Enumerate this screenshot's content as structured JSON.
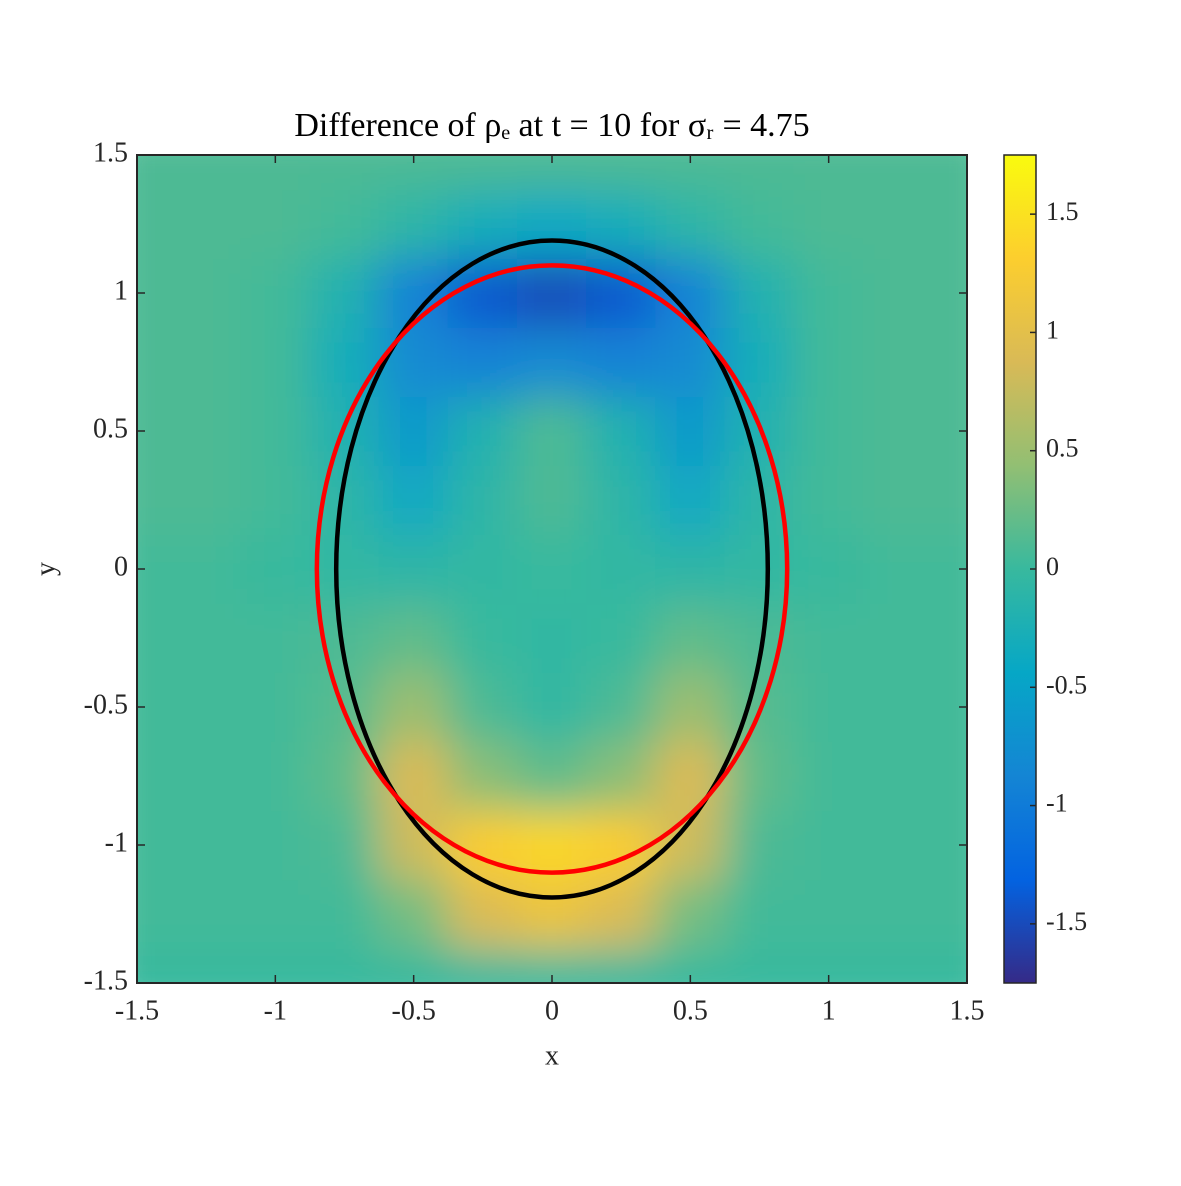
{
  "chart_data": {
    "type": "heatmap",
    "title": "Difference of ρₑ at t = 10 for σᵣ = 4.75",
    "x_label": "x",
    "y_label": "y",
    "x": [
      -1.5,
      -1.25,
      -1,
      -0.75,
      -0.5,
      -0.25,
      0,
      0.25,
      0.5,
      0.75,
      1,
      1.25,
      1.5
    ],
    "y": [
      -1.5,
      -1.25,
      -1,
      -0.75,
      -0.5,
      -0.25,
      0,
      0.25,
      0.5,
      0.75,
      1,
      1.25,
      1.5
    ],
    "z": [
      [
        0,
        0,
        0,
        0,
        0,
        0,
        0,
        0,
        0,
        0,
        0,
        0,
        0
      ],
      [
        0.05,
        0.05,
        0.05,
        0.05,
        0.3,
        0.9,
        1.1,
        0.9,
        0.3,
        0.05,
        0.05,
        0.05,
        0.05
      ],
      [
        0.05,
        0.05,
        0.05,
        0.1,
        0.8,
        1.3,
        1.4,
        1.3,
        0.8,
        0.1,
        0.05,
        0.05,
        0.05
      ],
      [
        0.05,
        0.05,
        0.05,
        0.2,
        0.9,
        0.4,
        0.2,
        0.4,
        0.9,
        0.2,
        0.05,
        0.05,
        0.05
      ],
      [
        0.05,
        0.05,
        0.05,
        0.15,
        0.5,
        0.1,
        -0.05,
        0.1,
        0.5,
        0.15,
        0.05,
        0.05,
        0.05
      ],
      [
        0.05,
        0.05,
        0.05,
        0.1,
        0.2,
        0,
        -0.05,
        0,
        0.2,
        0.1,
        0.05,
        0.05,
        0.05
      ],
      [
        0.05,
        0.05,
        0,
        -0.05,
        -0.1,
        -0.05,
        0,
        -0.05,
        -0.1,
        -0.05,
        0,
        0.05,
        0.05
      ],
      [
        0.1,
        0.1,
        0.05,
        -0.1,
        -0.4,
        -0.1,
        0.1,
        -0.1,
        -0.4,
        -0.1,
        0.05,
        0.1,
        0.1
      ],
      [
        0.1,
        0.1,
        0.05,
        -0.2,
        -0.6,
        -0.2,
        0.1,
        -0.2,
        -0.6,
        -0.2,
        0.05,
        0.1,
        0.1
      ],
      [
        0.1,
        0.1,
        0.05,
        -0.3,
        -0.8,
        -0.9,
        -0.8,
        -0.9,
        -0.8,
        -0.3,
        0.05,
        0.1,
        0.1
      ],
      [
        0.1,
        0.1,
        0.05,
        -0.2,
        -0.9,
        -1.4,
        -1.5,
        -1.4,
        -0.9,
        -0.2,
        0.05,
        0.1,
        0.1
      ],
      [
        0.1,
        0.1,
        0.1,
        0.05,
        -0.1,
        -0.3,
        -0.4,
        -0.3,
        -0.1,
        0.05,
        0.1,
        0.1,
        0.1
      ],
      [
        0.1,
        0.1,
        0.1,
        0.1,
        0.1,
        0.1,
        0.1,
        0.1,
        0.1,
        0.1,
        0.1,
        0.1,
        0.1
      ]
    ],
    "colormap": [
      "#352a87",
      "#0363e1",
      "#1485d4",
      "#06a7c6",
      "#38b99e",
      "#92bf73",
      "#d9ba56",
      "#fcce2e",
      "#f9fb0e"
    ],
    "clim": [
      -1.75,
      1.75
    ],
    "cticks": [
      -1.5,
      -1,
      -0.5,
      0,
      0.5,
      1,
      1.5
    ],
    "xlim": [
      -1.5,
      1.5
    ],
    "xticks": [
      -1.5,
      -1,
      -0.5,
      0,
      0.5,
      1,
      1.5
    ],
    "ylim": [
      -1.5,
      1.5
    ],
    "yticks": [
      -1.5,
      -1,
      -0.5,
      0,
      0.5,
      1,
      1.5
    ],
    "ellipses": [
      {
        "color": "#000000",
        "cx": 0,
        "cy": 0,
        "rx": 0.78,
        "ry": 1.19
      },
      {
        "color": "#ff0000",
        "cx": 0,
        "cy": 0,
        "rx": 0.85,
        "ry": 1.1
      }
    ]
  }
}
